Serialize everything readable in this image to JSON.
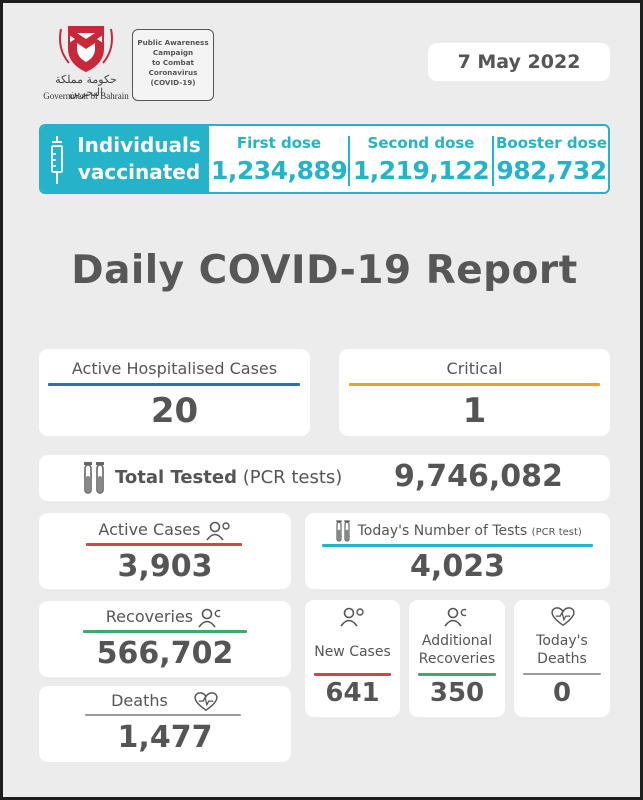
{
  "header": {
    "gov_arabic": "حكومة مملكة البحرين",
    "gov_english": "Government of Bahrain",
    "campaign_lines": [
      "Public Awareness",
      "Campaign",
      "to Combat",
      "Coronavirus",
      "(COVID-19)"
    ],
    "date": "7 May 2022"
  },
  "vaccination": {
    "title_line1": "Individuals",
    "title_line2": "vaccinated",
    "first_dose_label": "First dose",
    "first_dose_value": "1,234,889",
    "second_dose_label": "Second dose",
    "second_dose_value": "1,219,122",
    "booster_dose_label": "Booster dose",
    "booster_dose_value": "982,732"
  },
  "title": "Daily COVID-19 Report",
  "hospitalised": {
    "label": "Active Hospitalised Cases",
    "value": "20"
  },
  "critical": {
    "label": "Critical",
    "value": "1"
  },
  "total_tested": {
    "label": "Total Tested",
    "sublabel": "(PCR tests)",
    "value": "9,746,082"
  },
  "active_cases": {
    "label": "Active Cases",
    "value": "3,903"
  },
  "todays_tests": {
    "label": "Today's Number of Tests",
    "sublabel": "(PCR test)",
    "value": "4,023"
  },
  "recoveries": {
    "label": "Recoveries",
    "value": "566,702"
  },
  "deaths": {
    "label": "Deaths",
    "value": "1,477"
  },
  "new_cases": {
    "label": "New Cases",
    "value": "641"
  },
  "additional_recoveries": {
    "label_line1": "Additional",
    "label_line2": "Recoveries",
    "value": "350"
  },
  "todays_deaths": {
    "label_line1": "Today's",
    "label_line2": "Deaths",
    "value": "0"
  },
  "colors": {
    "teal": "#25b3c9",
    "blue": "#2f6db5",
    "orange": "#e8a12b",
    "red": "#d0464a",
    "green": "#3daa6d",
    "background": "#ececec",
    "text": "#555555"
  },
  "icons": [
    "bahrain-emblem-icon",
    "syringe-icon",
    "test-tubes-icon",
    "people-icon",
    "heart-pulse-icon"
  ]
}
